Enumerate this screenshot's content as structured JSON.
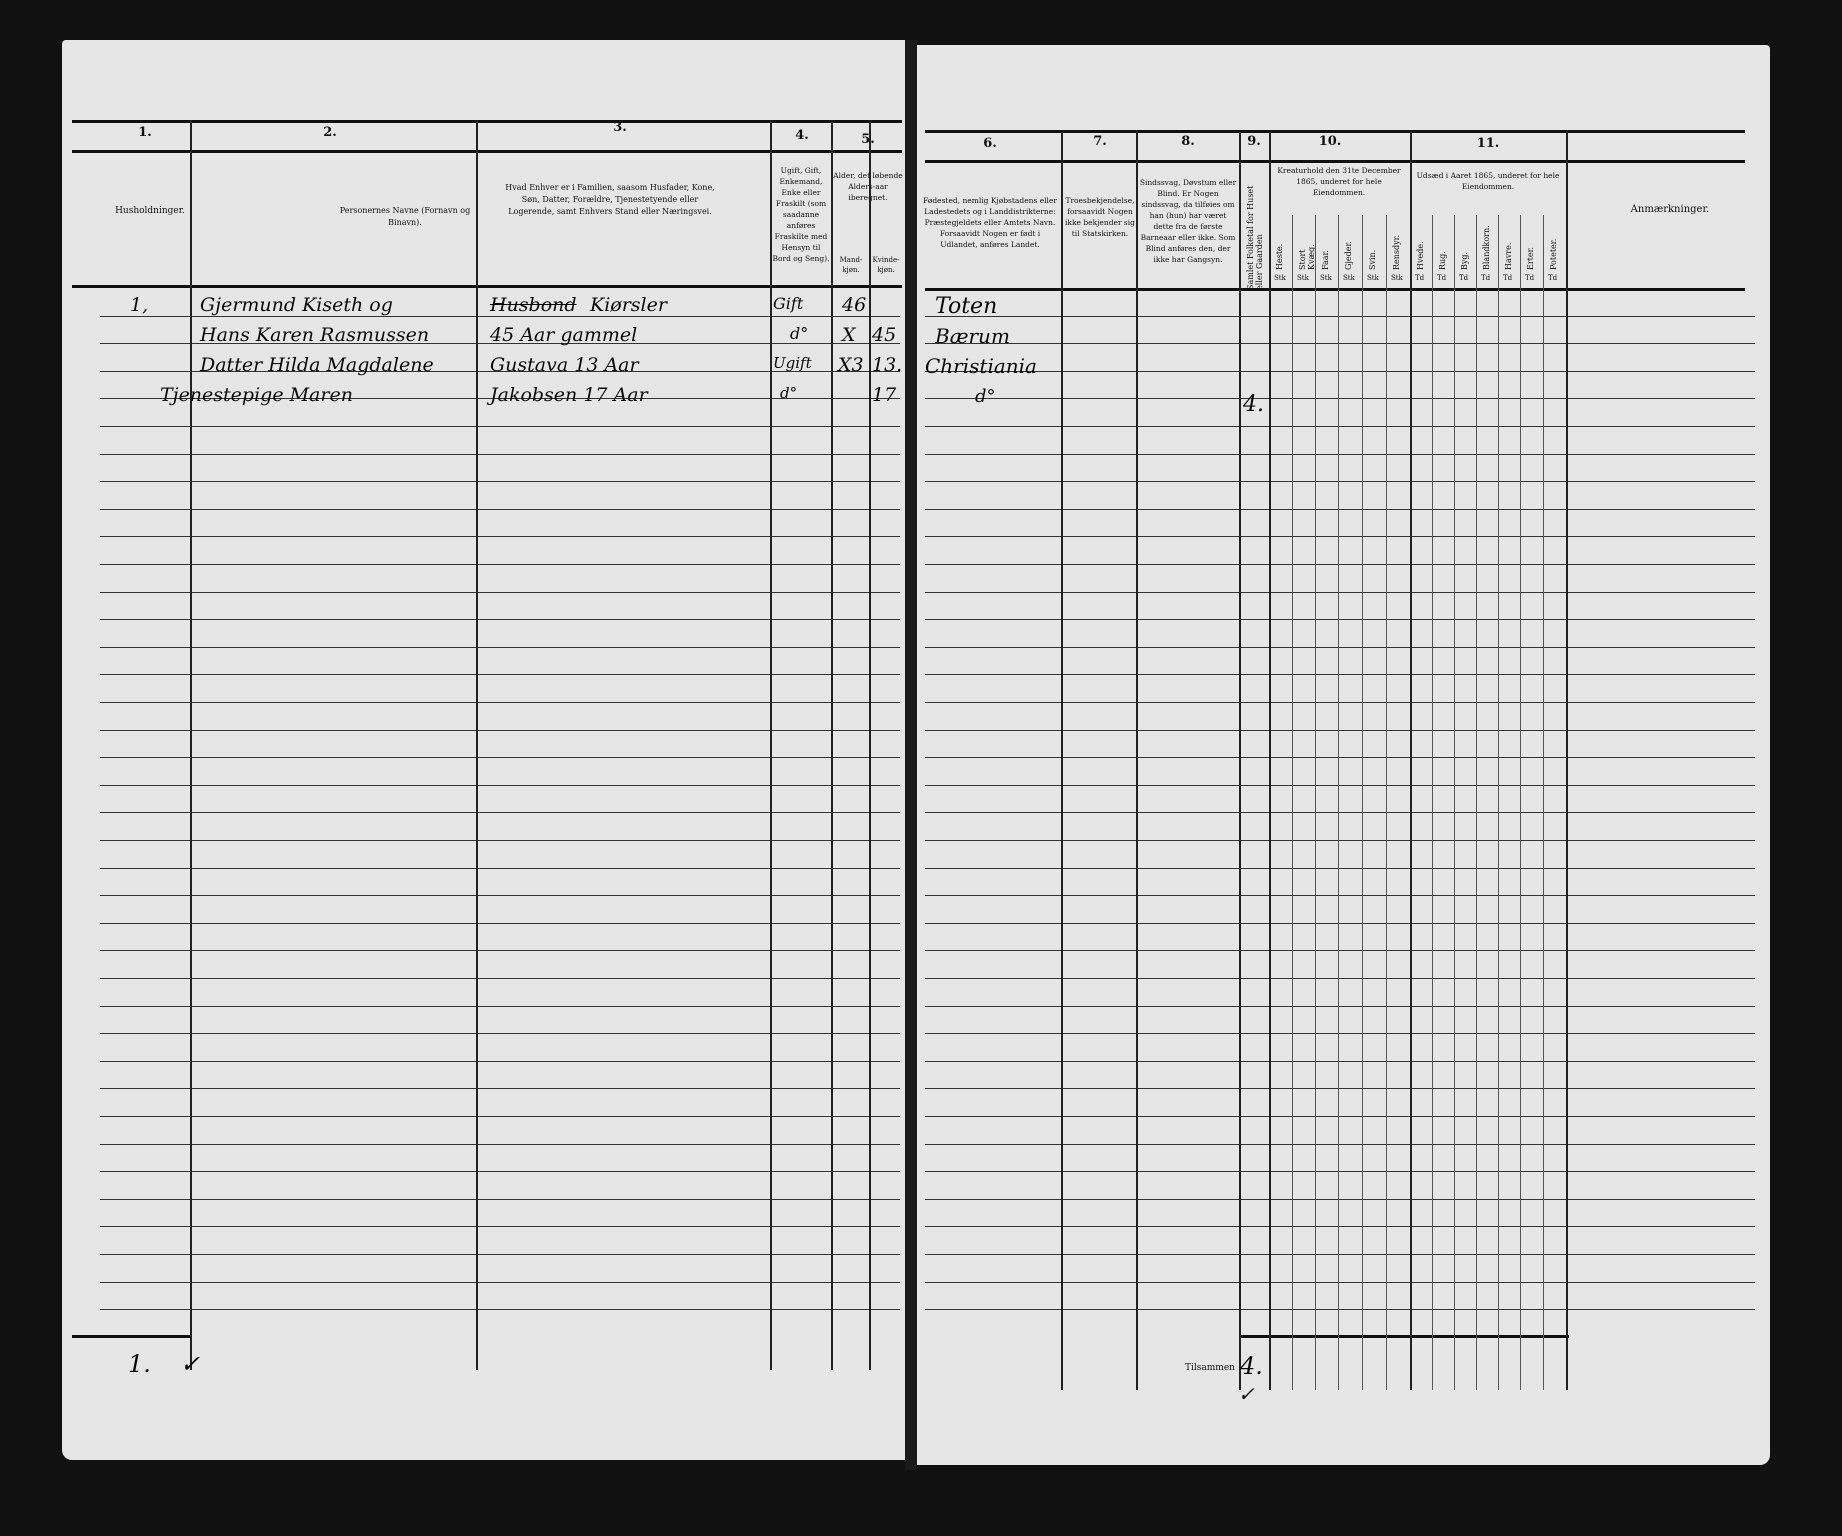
{
  "left_page": {
    "column_numbers": [
      "1.",
      "2.",
      "3.",
      "4.",
      "5."
    ],
    "headers": {
      "col1": "Husholdninger.",
      "col2": "Personernes Navne (Fornavn og Binavn).",
      "col3": "Hvad Enhver er i Familien, saasom Husfader, Kone, Søn, Datter, Forældre, Tjenestetyende eller Logerende, samt Enhvers Stand eller Næringsvei.",
      "col4": "Ugift, Gift, Enkemand, Enke eller Fraskilt (som saadanne anføres Fraskilte med Hensyn til Bord og Seng).",
      "col5": "Alder, det løbende Alders-aar iberegnet.",
      "col5_male": "Mand-kjøn.",
      "col5_female": "Kvinde-kjøn."
    },
    "rows": [
      {
        "household": "1,",
        "name": "Gjermund Kiseth og",
        "role": "Husbond",
        "role_struck": true,
        "role2": "Kiørsler",
        "status": "Gift",
        "age_male": "46",
        "age_female": ""
      },
      {
        "household": "",
        "name": "Hans Karen Rasmussen",
        "role": "45 Aar gammel",
        "status": "d°",
        "age_male": "X",
        "age_female": "45"
      },
      {
        "household": "",
        "name": "Datter Hilda Magdalene",
        "role": "Gustava 13 Aar",
        "status": "Ugift",
        "age_male": "X3",
        "age_female": "13."
      },
      {
        "household": "",
        "name": "Tjenestepige Maren",
        "role": "Jakobsen 17 Aar",
        "status": "d°",
        "age_male": "",
        "age_female": "17"
      }
    ],
    "total_households": "1.",
    "check_mark": "✓"
  },
  "right_page": {
    "column_numbers": [
      "6.",
      "7.",
      "8.",
      "9.",
      "10.",
      "11."
    ],
    "headers": {
      "col6": "Fødested, nemlig Kjøbstadens eller Ladestedets og i Landdistrikterne: Præstegjeldets eller Amtets Navn. Forsaavidt Nogen er født i Udlandet, anføres Landet.",
      "col7": "Troesbekjendelse, forsaavidt Nogen ikke bekjender sig til Statskirken.",
      "col8": "Sindssvag, Døvstum eller Blind. Er Nogen sindssvag, da tilføies om han (hun) har været dette fra de første Barneaar eller ikke. Som Blind anføres den, der ikke har Gangsyn.",
      "col9": "Samlet Folketal for Huset eller Gaarden",
      "col10": "Kreaturhold den 31te December 1865, underet for hele Eiendommen.",
      "col10_sub": [
        "Heste.",
        "Stort Kvæg.",
        "Faar.",
        "Gjeder.",
        "Svin.",
        "Rensdyr."
      ],
      "col10_unit": "Stk",
      "col11": "Udsæd i Aaret 1865, underet for hele Eiendommen.",
      "col11_sub": [
        "Hvede.",
        "Rug.",
        "Byg.",
        "Blandkorn.",
        "Havre.",
        "Erter.",
        "Poteter."
      ],
      "col11_unit": "Td",
      "remarks": "Anmærkninger."
    },
    "birthplaces": [
      "Toten",
      "Bærum",
      "Christiania",
      "d°"
    ],
    "household_total": "4.",
    "sum_label": "Tilsammen",
    "sum_value": "4.",
    "sum_check": "✓"
  }
}
